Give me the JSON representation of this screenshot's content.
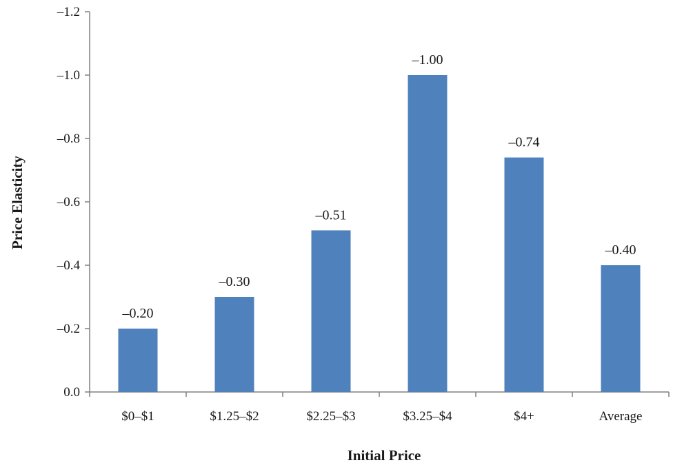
{
  "chart_data": {
    "type": "bar",
    "title": "",
    "xlabel": "Initial Price",
    "ylabel": "Price Elasticity",
    "categories": [
      "$0–$1",
      "$1.25–$2",
      "$2.25–$3",
      "$3.25–$4",
      "$4+",
      "Average"
    ],
    "values": [
      -0.2,
      -0.3,
      -0.51,
      -1.0,
      -0.74,
      -0.4
    ],
    "data_labels": [
      "–0.20",
      "–0.30",
      "–0.51",
      "–1.00",
      "–0.74",
      "–0.40"
    ],
    "y_ticks": [
      0.0,
      -0.2,
      -0.4,
      -0.6,
      -0.8,
      -1.0,
      -1.2
    ],
    "y_tick_labels": [
      "0.0",
      "–0.2",
      "–0.4",
      "–0.6",
      "–0.8",
      "–1.0",
      "–1.2"
    ],
    "ylim": [
      0.0,
      -1.2
    ],
    "y_axis_inverted": true,
    "grid": false,
    "legend": "none",
    "bar_color": "#4f81bd"
  }
}
